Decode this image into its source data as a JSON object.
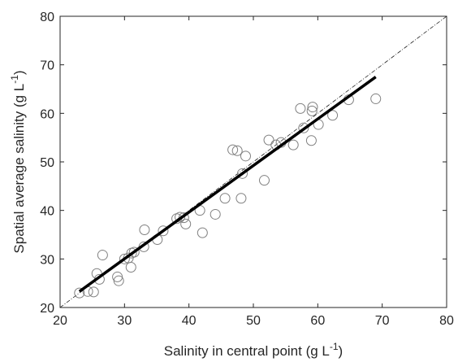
{
  "chart_data": {
    "type": "scatter",
    "title": "",
    "xlabel": {
      "main": "Salinity in central point (g L",
      "sup": "-1",
      "close": ")"
    },
    "ylabel": {
      "main": "Spatial average salinity (g L",
      "sup": "-1",
      "close": ")"
    },
    "xlim": [
      20,
      80
    ],
    "ylim": [
      20,
      80
    ],
    "xticks": [
      "20",
      "30",
      "40",
      "50",
      "60",
      "70",
      "80"
    ],
    "yticks": [
      "20",
      "30",
      "40",
      "50",
      "60",
      "70",
      "80"
    ],
    "grid": false,
    "legend": "none",
    "series": [
      {
        "kind": "points",
        "marker": "open-circle",
        "color": "#808080",
        "points": [
          [
            23,
            23
          ],
          [
            24.3,
            23.3
          ],
          [
            25.2,
            23.2
          ],
          [
            25.7,
            27
          ],
          [
            26.1,
            25.8
          ],
          [
            26.6,
            30.8
          ],
          [
            28.9,
            26.3
          ],
          [
            29.1,
            25.5
          ],
          [
            30,
            30
          ],
          [
            30.6,
            30.2
          ],
          [
            31,
            28.3
          ],
          [
            31.1,
            31.2
          ],
          [
            31.5,
            31.4
          ],
          [
            33,
            32.5
          ],
          [
            33.1,
            36
          ],
          [
            35.1,
            34
          ],
          [
            36,
            35.8
          ],
          [
            38.1,
            38.3
          ],
          [
            38.6,
            38.6
          ],
          [
            39.2,
            38.5
          ],
          [
            39.5,
            37.2
          ],
          [
            41.7,
            40
          ],
          [
            42.1,
            35.4
          ],
          [
            44.1,
            39.2
          ],
          [
            45.6,
            42.5
          ],
          [
            46.8,
            52.5
          ],
          [
            47.5,
            52.3
          ],
          [
            48.1,
            42.5
          ],
          [
            48.3,
            47.6
          ],
          [
            48.8,
            51.2
          ],
          [
            51.7,
            46.2
          ],
          [
            52.4,
            54.5
          ],
          [
            53.5,
            53.5
          ],
          [
            54.3,
            54
          ],
          [
            56.2,
            53.5
          ],
          [
            57.3,
            61
          ],
          [
            57.8,
            57
          ],
          [
            59,
            54.4
          ],
          [
            59.1,
            60.5
          ],
          [
            59.2,
            61.3
          ],
          [
            60.1,
            57.7
          ],
          [
            62.3,
            59.6
          ],
          [
            64.8,
            62.8
          ],
          [
            69,
            63
          ]
        ]
      },
      {
        "kind": "fit-line",
        "color": "#000000",
        "points": [
          [
            23,
            23.3
          ],
          [
            69,
            67.5
          ]
        ]
      },
      {
        "kind": "identity-line",
        "style": "dash-dot",
        "color": "#000000",
        "points": [
          [
            20,
            20
          ],
          [
            80,
            80
          ]
        ]
      }
    ]
  }
}
